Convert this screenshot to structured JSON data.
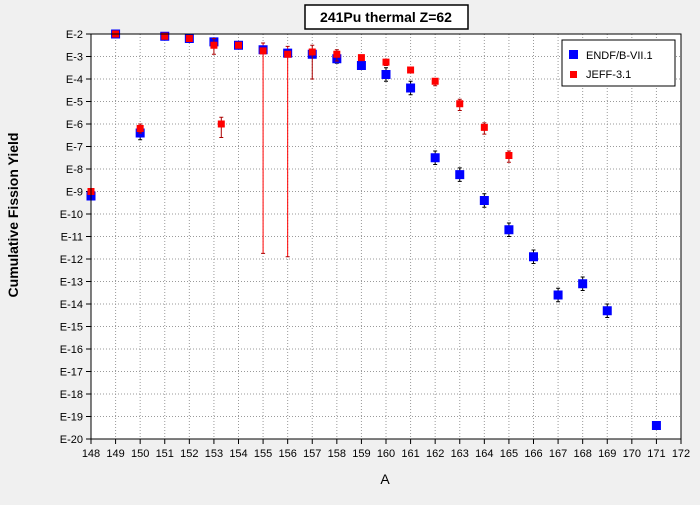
{
  "chart_data": {
    "type": "scatter",
    "title": "241Pu thermal Z=62",
    "xlabel": "A",
    "ylabel": "Cumulative Fission Yield",
    "xlim": [
      148,
      172
    ],
    "ylim_log10": [
      -20,
      -2
    ],
    "y_scale": "log",
    "grid": true,
    "legend_position": "top-right",
    "x_ticks": [
      "148",
      "149",
      "150",
      "151",
      "152",
      "153",
      "154",
      "155",
      "156",
      "157",
      "158",
      "159",
      "160",
      "161",
      "162",
      "163",
      "164",
      "165",
      "166",
      "167",
      "168",
      "169",
      "170",
      "171",
      "172"
    ],
    "y_ticks": [
      "E-2",
      "E-3",
      "E-4",
      "E-5",
      "E-6",
      "E-7",
      "E-8",
      "E-9",
      "E-10",
      "E-11",
      "E-12",
      "E-13",
      "E-14",
      "E-15",
      "E-16",
      "E-17",
      "E-18",
      "E-19",
      "E-20"
    ],
    "series": [
      {
        "name": "ENDF/B-VII.1",
        "color": "#0000ff",
        "marker": "square",
        "points": [
          {
            "x": 148,
            "log10y": -9.2,
            "err_lo": 0.1,
            "err_hi": 0.1
          },
          {
            "x": 149,
            "log10y": -2.0,
            "err_lo": 0,
            "err_hi": 0
          },
          {
            "x": 150,
            "log10y": -6.4,
            "err_lo": 0.3,
            "err_hi": 0.3
          },
          {
            "x": 151,
            "log10y": -2.1,
            "err_lo": 0,
            "err_hi": 0
          },
          {
            "x": 152,
            "log10y": -2.2,
            "err_lo": 0,
            "err_hi": 0
          },
          {
            "x": 153,
            "log10y": -2.35,
            "err_lo": 0.05,
            "err_hi": 0.05
          },
          {
            "x": 154,
            "log10y": -2.5,
            "err_lo": 0.05,
            "err_hi": 0.05
          },
          {
            "x": 155,
            "log10y": -2.7,
            "err_lo": 0.1,
            "err_hi": 0.1
          },
          {
            "x": 156,
            "log10y": -2.85,
            "err_lo": 0.1,
            "err_hi": 0.1
          },
          {
            "x": 157,
            "log10y": -2.9,
            "err_lo": 0.1,
            "err_hi": 0.1
          },
          {
            "x": 158,
            "log10y": -3.1,
            "err_lo": 0.2,
            "err_hi": 0.2
          },
          {
            "x": 159,
            "log10y": -3.4,
            "err_lo": 0.1,
            "err_hi": 0.1
          },
          {
            "x": 160,
            "log10y": -3.8,
            "err_lo": 0.3,
            "err_hi": 0.3
          },
          {
            "x": 161,
            "log10y": -4.4,
            "err_lo": 0.3,
            "err_hi": 0.3
          },
          {
            "x": 162,
            "log10y": -7.5,
            "err_lo": 0.3,
            "err_hi": 0.3
          },
          {
            "x": 163,
            "log10y": -8.25,
            "err_lo": 0.3,
            "err_hi": 0.3
          },
          {
            "x": 164,
            "log10y": -9.4,
            "err_lo": 0.3,
            "err_hi": 0.3
          },
          {
            "x": 165,
            "log10y": -10.7,
            "err_lo": 0.3,
            "err_hi": 0.3
          },
          {
            "x": 166,
            "log10y": -11.9,
            "err_lo": 0.3,
            "err_hi": 0.3
          },
          {
            "x": 167,
            "log10y": -13.6,
            "err_lo": 0.3,
            "err_hi": 0.3
          },
          {
            "x": 168,
            "log10y": -13.1,
            "err_lo": 0.3,
            "err_hi": 0.3
          },
          {
            "x": 169,
            "log10y": -14.3,
            "err_lo": 0.3,
            "err_hi": 0.3
          },
          {
            "x": 171,
            "log10y": -19.4,
            "err_lo": 0,
            "err_hi": 0
          }
        ]
      },
      {
        "name": "JEFF-3.1",
        "color": "#ff0000",
        "marker": "square",
        "points": [
          {
            "x": 148,
            "log10y": -9.0,
            "err_lo": 0.1,
            "err_hi": 0.1
          },
          {
            "x": 149,
            "log10y": -2.0,
            "err_lo": 0,
            "err_hi": 0
          },
          {
            "x": 150,
            "log10y": -6.2,
            "err_lo": 0.2,
            "err_hi": 0.2
          },
          {
            "x": 151,
            "log10y": -2.1,
            "err_lo": 0,
            "err_hi": 0
          },
          {
            "x": 152,
            "log10y": -2.2,
            "err_lo": 0,
            "err_hi": 0
          },
          {
            "x": 153,
            "log10y": -2.5,
            "err_lo": 0.4,
            "err_hi": 0.3
          },
          {
            "x": 153.3,
            "log10y": -6.0,
            "err_lo": 0.6,
            "err_hi": 0.3
          },
          {
            "x": 154,
            "log10y": -2.5,
            "err_lo": 0.05,
            "err_hi": 0.05
          },
          {
            "x": 155,
            "log10y": -2.75,
            "err_lo": 9.0,
            "err_hi": 0.35
          },
          {
            "x": 156,
            "log10y": -2.9,
            "err_lo": 9.0,
            "err_hi": 0.35
          },
          {
            "x": 157,
            "log10y": -2.8,
            "err_lo": 1.2,
            "err_hi": 0.3
          },
          {
            "x": 158,
            "log10y": -2.9,
            "err_lo": 0.3,
            "err_hi": 0.2
          },
          {
            "x": 159,
            "log10y": -3.05,
            "err_lo": 0.1,
            "err_hi": 0.1
          },
          {
            "x": 160,
            "log10y": -3.25,
            "err_lo": 0.15,
            "err_hi": 0.1
          },
          {
            "x": 161,
            "log10y": -3.6,
            "err_lo": 0.1,
            "err_hi": 0.1
          },
          {
            "x": 162,
            "log10y": -4.1,
            "err_lo": 0.2,
            "err_hi": 0.1
          },
          {
            "x": 163,
            "log10y": -5.1,
            "err_lo": 0.3,
            "err_hi": 0.2
          },
          {
            "x": 164,
            "log10y": -6.15,
            "err_lo": 0.3,
            "err_hi": 0.2
          },
          {
            "x": 165,
            "log10y": -7.4,
            "err_lo": 0.3,
            "err_hi": 0.2
          }
        ]
      }
    ]
  }
}
